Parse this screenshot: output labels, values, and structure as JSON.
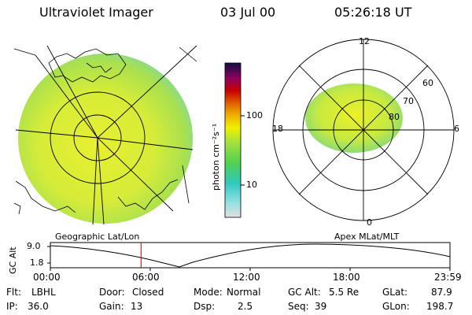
{
  "header": {
    "instrument": "Ultraviolet Imager",
    "date": "03 Jul 00",
    "time": "05:26:18 UT"
  },
  "left_panel": {
    "label": "Geographic Lat/Lon"
  },
  "right_panel": {
    "label": "Apex MLat/MLT",
    "mlt_labels": [
      "12",
      "18",
      "6",
      "0"
    ],
    "mlat_labels": [
      "60",
      "70",
      "80"
    ]
  },
  "colorbar": {
    "unit_label": "photon cm⁻²s⁻¹",
    "ticks": [
      "100",
      "10"
    ],
    "colors": [
      "#d8d8d8",
      "#40d0c0",
      "#60e060",
      "#c0f040",
      "#f0f000",
      "#f0a000",
      "#e04000",
      "#c00000",
      "#800080",
      "#202080"
    ]
  },
  "altitude_plot": {
    "axis_label": "GC Alt",
    "y_ticks": [
      "9.0",
      "1.8"
    ],
    "x_ticks": [
      "00:00",
      "06:00",
      "12:00",
      "18:00",
      "23:59"
    ],
    "current_time_fraction": 0.227,
    "marker_color": "#cc0000"
  },
  "status": {
    "filter_label": "Flt:",
    "filter_value": "LBHL",
    "ip_label": "IP:",
    "ip_value": "36.0",
    "door_label": "Door:",
    "door_value": "Closed",
    "gain_label": "Gain:",
    "gain_value": "13",
    "mode_label": "Mode:",
    "mode_value": "Normal",
    "dsp_label": "Dsp:",
    "dsp_value": "2.5",
    "gcalt_label": "GC Alt:",
    "gcalt_value": "5.5 Re",
    "seq_label": "Seq:",
    "seq_value": "39",
    "glat_label": "GLat:",
    "glat_value": "87.9",
    "glon_label": "GLon:",
    "glon_value": "198.7"
  }
}
